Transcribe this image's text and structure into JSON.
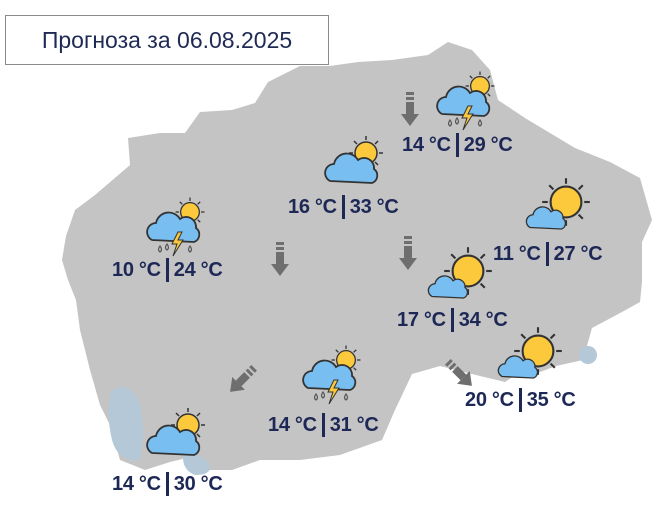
{
  "title": "Прогноза за 06.08.2025",
  "colors": {
    "land": "#c4c4c4",
    "lake": "#b4c8d8",
    "text": "#1d2856",
    "arrow": "#6e6e6e",
    "cloud": "#79bef0",
    "sun": "#fcc93c"
  },
  "forecasts": [
    {
      "min": "14 °C",
      "max": "29 °C",
      "icon": "thunderstorm-rain-sun-icon"
    },
    {
      "min": "16 °C",
      "max": "33 °C",
      "icon": "partly-cloudy-icon"
    },
    {
      "min": "11 °C",
      "max": "27 °C",
      "icon": "mostly-sunny-icon"
    },
    {
      "min": "10 °C",
      "max": "24 °C",
      "icon": "thunderstorm-rain-sun-icon"
    },
    {
      "min": "17 °C",
      "max": "34 °C",
      "icon": "mostly-sunny-icon"
    },
    {
      "min": "20 °C",
      "max": "35 °C",
      "icon": "mostly-sunny-icon"
    },
    {
      "min": "14 °C",
      "max": "31 °C",
      "icon": "thunderstorm-rain-sun-icon"
    },
    {
      "min": "14 °C",
      "max": "30 °C",
      "icon": "partly-cloudy-icon"
    }
  ],
  "wind": [
    {
      "direction": "S"
    },
    {
      "direction": "S"
    },
    {
      "direction": "S"
    },
    {
      "direction": "SW"
    },
    {
      "direction": "SE"
    }
  ]
}
